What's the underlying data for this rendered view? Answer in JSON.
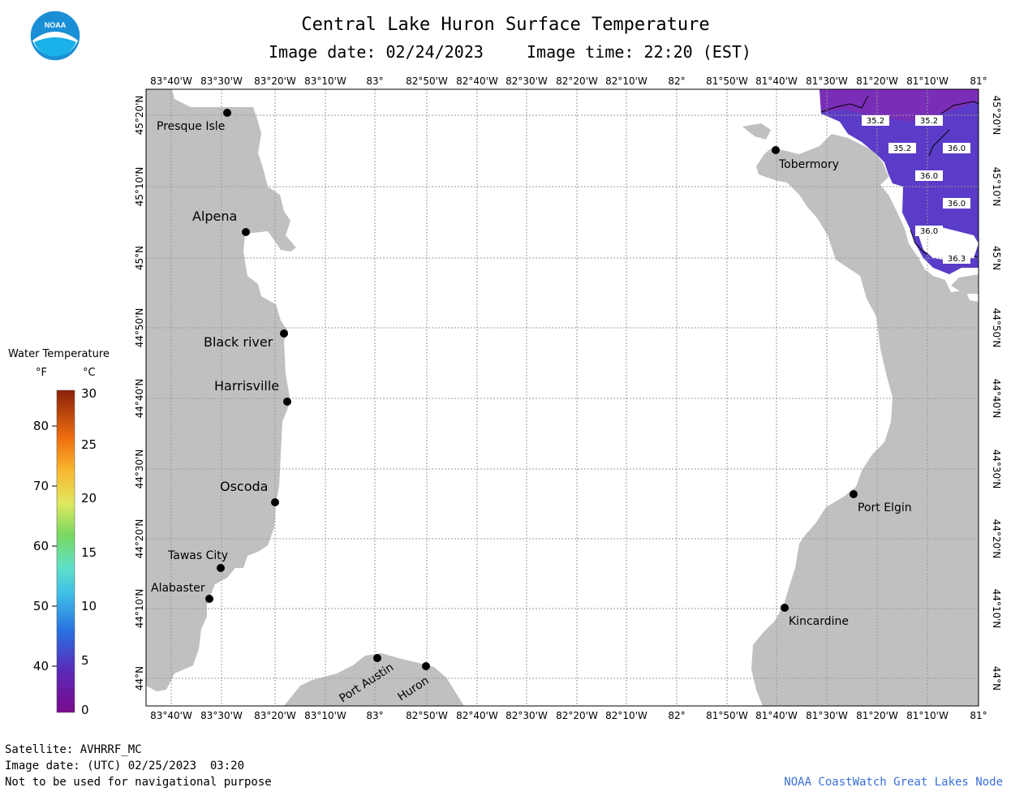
{
  "header": {
    "title": "Central Lake Huron Surface Temperature",
    "image_date": "Image date: 02/24/2023",
    "image_time": "Image time: 22:20 (EST)"
  },
  "map": {
    "lon_labels": [
      "83°40'W",
      "83°30'W",
      "83°20'W",
      "83°10'W",
      "83°",
      "82°50'W",
      "82°40'W",
      "82°30'W",
      "82°20'W",
      "82°10'W",
      "82°",
      "81°50'W",
      "81°40'W",
      "81°30'W",
      "81°20'W",
      "81°10'W",
      "81°"
    ],
    "lat_labels": [
      "45°20'N",
      "45°10'N",
      "45°N",
      "44°50'N",
      "44°40'N",
      "44°30'N",
      "44°20'N",
      "44°10'N",
      "44°N"
    ],
    "places": [
      {
        "name": "Presque Isle"
      },
      {
        "name": "Alpena"
      },
      {
        "name": "Black river"
      },
      {
        "name": "Harrisville"
      },
      {
        "name": "Oscoda"
      },
      {
        "name": "Tawas City"
      },
      {
        "name": "Alabaster"
      },
      {
        "name": "Port Austin"
      },
      {
        "name": "Huron"
      },
      {
        "name": "Tobermory"
      },
      {
        "name": "Port Elgin"
      },
      {
        "name": "Kincardine"
      }
    ],
    "temperature_labels": [
      "35.2",
      "35.2",
      "35.2",
      "36.0",
      "36.0",
      "36.0",
      "36.0",
      "36.3"
    ],
    "colors": {
      "land": "#c0c0c0",
      "water_coldest": "#6a2ab8",
      "water_cold": "#4a32c8",
      "grid": "#9a9a9a"
    }
  },
  "legend": {
    "title": "Water Temperature",
    "unit_f": "°F",
    "unit_c": "°C",
    "f_ticks": [
      "80",
      "70",
      "60",
      "50",
      "40"
    ],
    "c_ticks": [
      "30",
      "25",
      "20",
      "15",
      "10",
      "5",
      "0"
    ]
  },
  "footer": {
    "satellite": "Satellite: AVHRRF_MC",
    "utc_date": "Image date: (UTC) 02/25/2023  03:20",
    "disclaimer": "Not to be used for navigational purpose",
    "credit": "NOAA CoastWatch Great Lakes Node"
  },
  "logo": {
    "text": "NOAA"
  }
}
